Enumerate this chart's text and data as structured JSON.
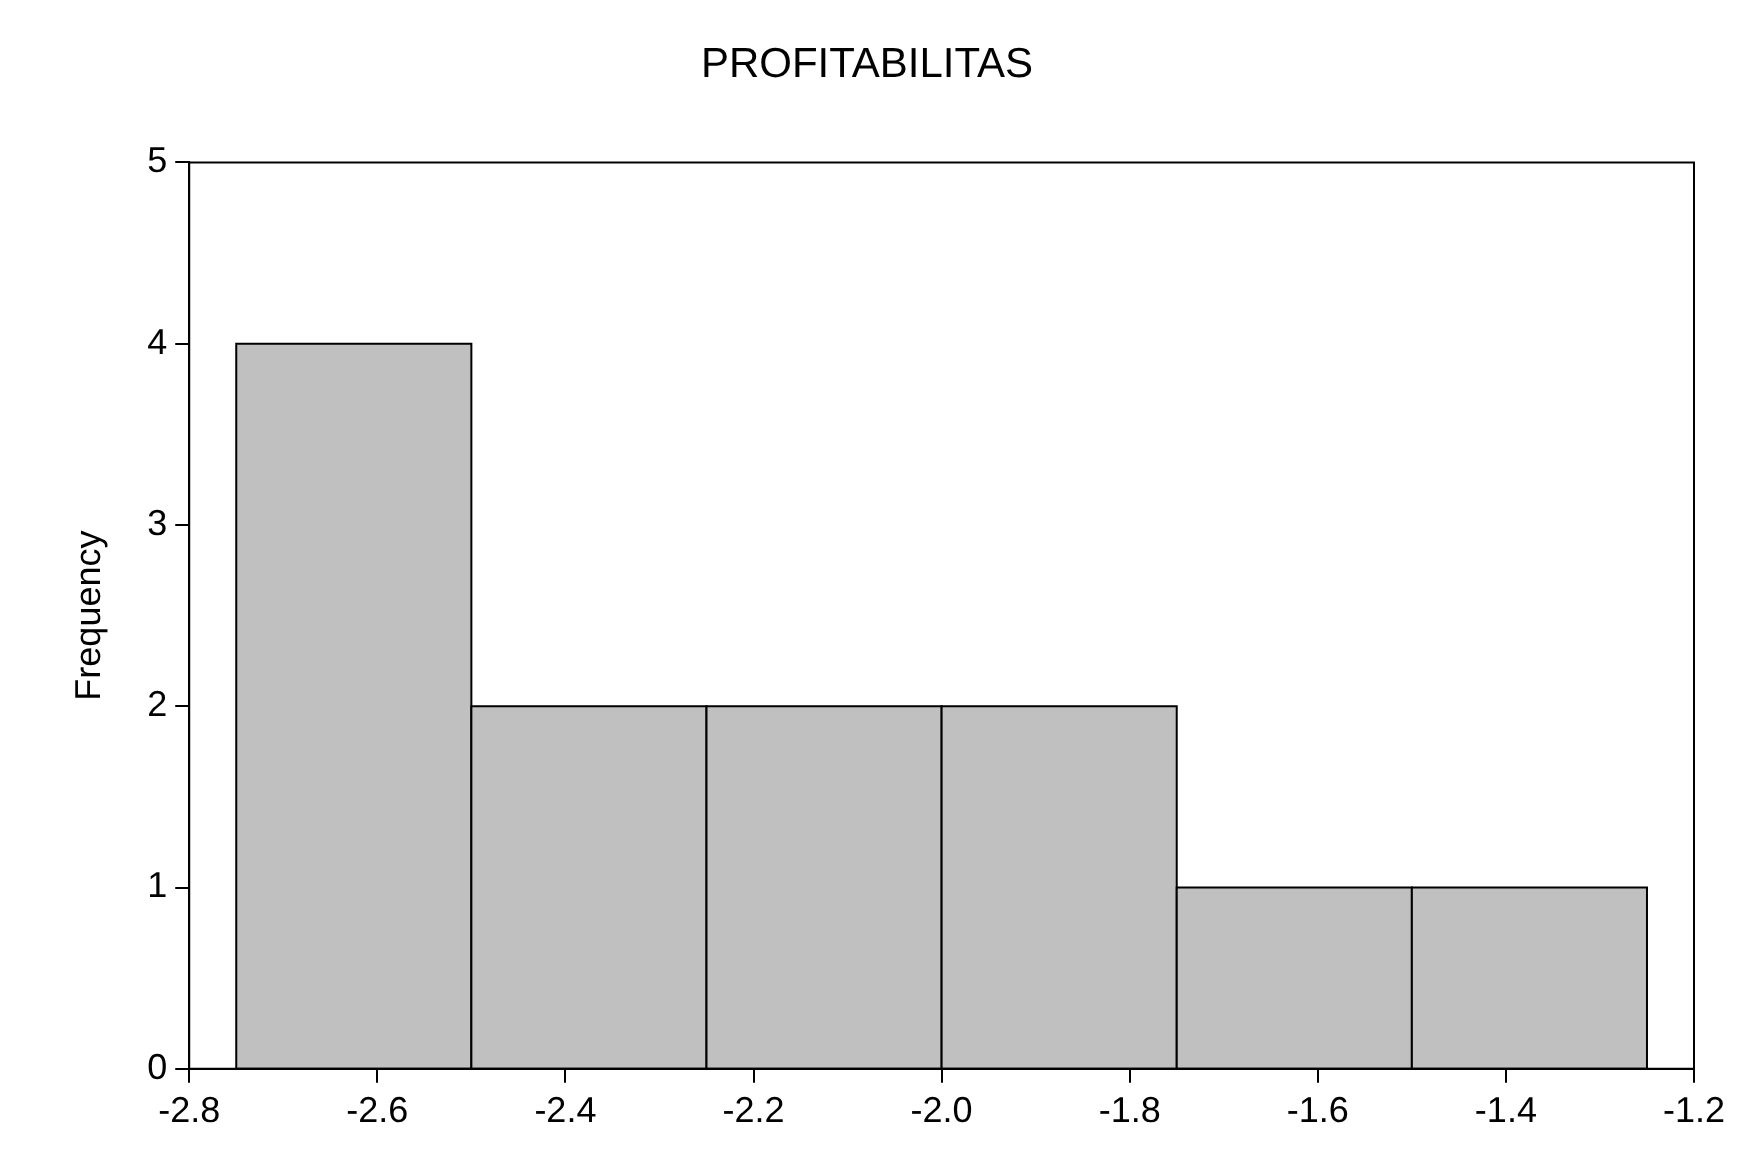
{
  "chart_data": {
    "type": "histogram",
    "title": "PROFITABILITAS",
    "ylabel": "Frequency",
    "bins": [
      -2.75,
      -2.5,
      -2.25,
      -2.0,
      -1.75,
      -1.5,
      -1.25
    ],
    "values": [
      4,
      2,
      2,
      2,
      1,
      1
    ],
    "color": "#c0c0c0",
    "xlim": [
      -2.8,
      -1.2
    ],
    "xticks": [
      {
        "value": -2.8,
        "label": "-2.8"
      },
      {
        "value": -2.6,
        "label": "-2.6"
      },
      {
        "value": -2.4,
        "label": "-2.4"
      },
      {
        "value": -2.2,
        "label": "-2.2"
      },
      {
        "value": -2.0,
        "label": "-2.0"
      },
      {
        "value": -1.8,
        "label": "-1.8"
      },
      {
        "value": -1.6,
        "label": "-1.6"
      },
      {
        "value": -1.4,
        "label": "-1.4"
      },
      {
        "value": -1.2,
        "label": "-1.2"
      }
    ],
    "ylim": [
      0,
      5
    ],
    "yticks": [
      0,
      1,
      2,
      3,
      4,
      5
    ],
    "grid": false,
    "legend": false
  }
}
